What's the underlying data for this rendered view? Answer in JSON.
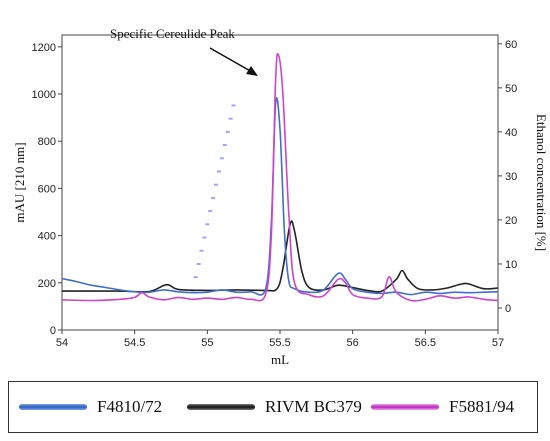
{
  "chart_data": {
    "type": "line",
    "xlabel": "mL",
    "ylabel": "mAU [210 nm]",
    "y2label": "Ethanol concentration [%]",
    "xlim": [
      54,
      57
    ],
    "ylim": [
      0,
      1250
    ],
    "y2lim": [
      -5,
      62
    ],
    "xticks": [
      "54",
      "54.5",
      "55",
      "55.5",
      "56",
      "56.5",
      "57"
    ],
    "yticks": [
      "0",
      "200",
      "400",
      "600",
      "800",
      "1000",
      "1200"
    ],
    "y2ticks": [
      "0",
      "10",
      "20",
      "30",
      "40",
      "50",
      "60"
    ],
    "grid": false,
    "annotation": "Specific Cereulide Peak",
    "series": [
      {
        "name": "F4810/72",
        "color": "#3f6fc8",
        "axis": "left",
        "points": [
          [
            54.0,
            218
          ],
          [
            54.1,
            205
          ],
          [
            54.2,
            190
          ],
          [
            54.3,
            180
          ],
          [
            54.4,
            170
          ],
          [
            54.5,
            162
          ],
          [
            54.6,
            160
          ],
          [
            54.7,
            170
          ],
          [
            54.8,
            162
          ],
          [
            54.9,
            158
          ],
          [
            55.0,
            160
          ],
          [
            55.1,
            170
          ],
          [
            55.2,
            160
          ],
          [
            55.3,
            162
          ],
          [
            55.4,
            172
          ],
          [
            55.44,
            450
          ],
          [
            55.47,
            960
          ],
          [
            55.5,
            850
          ],
          [
            55.53,
            420
          ],
          [
            55.56,
            210
          ],
          [
            55.6,
            175
          ],
          [
            55.7,
            160
          ],
          [
            55.8,
            170
          ],
          [
            55.9,
            240
          ],
          [
            55.95,
            215
          ],
          [
            56.0,
            175
          ],
          [
            56.1,
            160
          ],
          [
            56.2,
            155
          ],
          [
            56.3,
            160
          ],
          [
            56.4,
            150
          ],
          [
            56.5,
            160
          ],
          [
            56.6,
            155
          ],
          [
            56.7,
            160
          ],
          [
            56.8,
            158
          ],
          [
            56.9,
            160
          ],
          [
            57.0,
            162
          ]
        ]
      },
      {
        "name": "RIVM BC379",
        "color": "#222222",
        "axis": "left",
        "points": [
          [
            54.0,
            165
          ],
          [
            54.2,
            165
          ],
          [
            54.4,
            165
          ],
          [
            54.6,
            163
          ],
          [
            54.72,
            192
          ],
          [
            54.8,
            172
          ],
          [
            55.0,
            168
          ],
          [
            55.2,
            170
          ],
          [
            55.4,
            168
          ],
          [
            55.48,
            175
          ],
          [
            55.52,
            260
          ],
          [
            55.57,
            450
          ],
          [
            55.6,
            420
          ],
          [
            55.65,
            250
          ],
          [
            55.7,
            180
          ],
          [
            55.8,
            170
          ],
          [
            55.9,
            190
          ],
          [
            56.0,
            180
          ],
          [
            56.1,
            168
          ],
          [
            56.2,
            165
          ],
          [
            56.3,
            215
          ],
          [
            56.34,
            252
          ],
          [
            56.38,
            215
          ],
          [
            56.45,
            175
          ],
          [
            56.55,
            170
          ],
          [
            56.65,
            178
          ],
          [
            56.75,
            195
          ],
          [
            56.8,
            195
          ],
          [
            56.9,
            175
          ],
          [
            57.0,
            178
          ]
        ]
      },
      {
        "name": "F5881/94",
        "color": "#cc44cc",
        "axis": "left",
        "points": [
          [
            54.0,
            128
          ],
          [
            54.2,
            125
          ],
          [
            54.4,
            130
          ],
          [
            54.5,
            138
          ],
          [
            54.55,
            158
          ],
          [
            54.6,
            140
          ],
          [
            54.7,
            128
          ],
          [
            54.8,
            138
          ],
          [
            54.9,
            130
          ],
          [
            55.0,
            135
          ],
          [
            55.1,
            130
          ],
          [
            55.2,
            138
          ],
          [
            55.3,
            130
          ],
          [
            55.4,
            150
          ],
          [
            55.44,
            400
          ],
          [
            55.47,
            1060
          ],
          [
            55.49,
            1165
          ],
          [
            55.52,
            1000
          ],
          [
            55.56,
            500
          ],
          [
            55.6,
            200
          ],
          [
            55.7,
            150
          ],
          [
            55.8,
            145
          ],
          [
            55.9,
            215
          ],
          [
            55.95,
            200
          ],
          [
            56.0,
            150
          ],
          [
            56.1,
            135
          ],
          [
            56.2,
            140
          ],
          [
            56.25,
            225
          ],
          [
            56.3,
            160
          ],
          [
            56.4,
            125
          ],
          [
            56.5,
            130
          ],
          [
            56.6,
            145
          ],
          [
            56.7,
            135
          ],
          [
            56.8,
            140
          ],
          [
            56.9,
            130
          ],
          [
            57.0,
            125
          ]
        ]
      },
      {
        "name": "Ethanol concentration",
        "color": "#7a7aff",
        "axis": "right",
        "dotted": true,
        "points": [
          [
            54.9,
            4
          ],
          [
            54.92,
            7
          ],
          [
            54.94,
            10
          ],
          [
            54.96,
            13
          ],
          [
            54.98,
            16
          ],
          [
            55.0,
            19
          ],
          [
            55.02,
            22
          ],
          [
            55.04,
            25
          ],
          [
            55.06,
            28
          ],
          [
            55.08,
            31
          ],
          [
            55.1,
            34
          ],
          [
            55.12,
            37
          ],
          [
            55.14,
            40
          ],
          [
            55.16,
            43
          ],
          [
            55.18,
            46
          ]
        ]
      }
    ]
  },
  "legend": {
    "items": [
      {
        "label": "F4810/72",
        "color": "#3f6fc8"
      },
      {
        "label": "RIVM BC379",
        "color": "#222222"
      },
      {
        "label": "F5881/94",
        "color": "#cc44cc"
      }
    ]
  }
}
